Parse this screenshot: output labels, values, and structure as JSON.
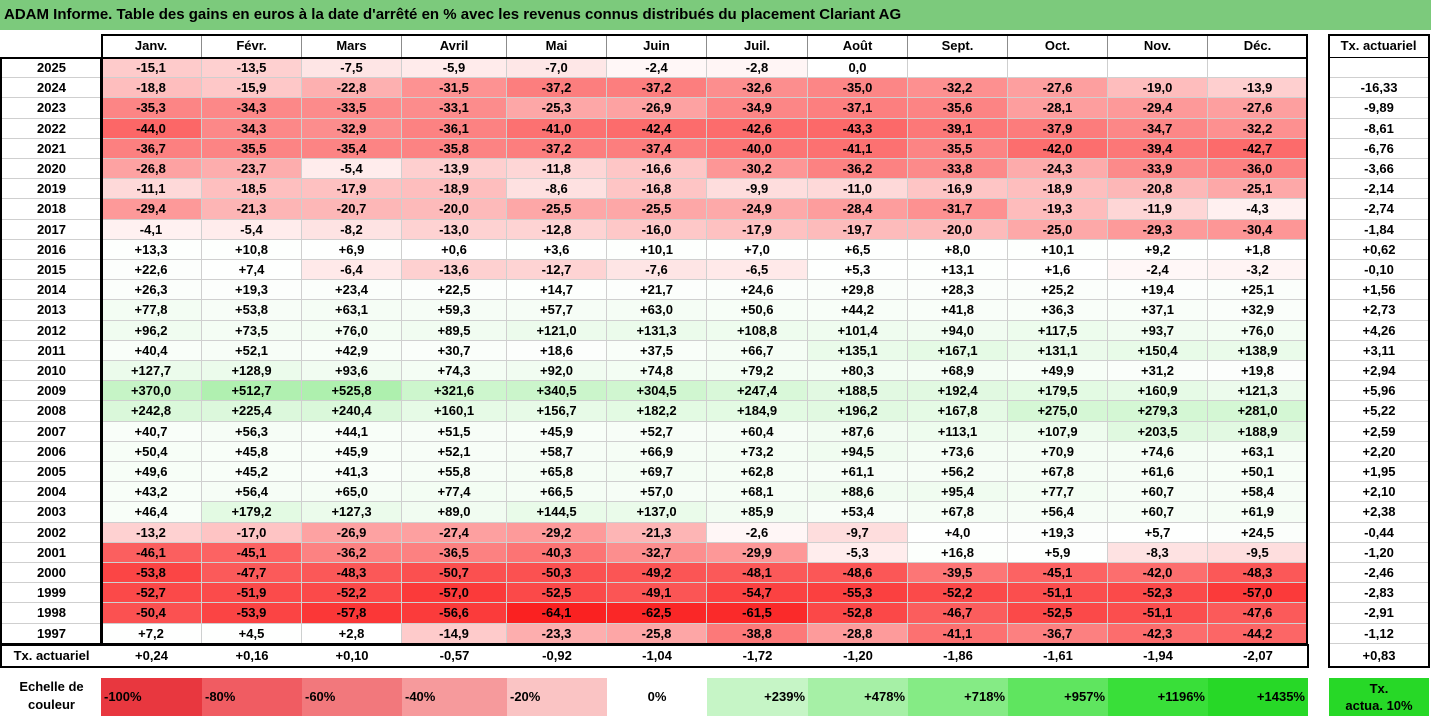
{
  "title": "ADAM Informe. Table des gains en euros à la date d'arrêté en % avec les revenus connus distribués du placement Clariant AG",
  "months": [
    "Janv.",
    "Févr.",
    "Mars",
    "Avril",
    "Mai",
    "Juin",
    "Juil.",
    "Août",
    "Sept.",
    "Oct.",
    "Nov.",
    "Déc."
  ],
  "rate_header": "Tx. actuariel",
  "colors": {
    "title_bar": "#7cca7c",
    "neg_100": "#e8373f",
    "neg_80": "#f05c62",
    "neg_60": "#f2787c",
    "neg_40": "#f69a9c",
    "neg_20": "#fac4c4",
    "zero": "#ffffff",
    "pos_239": "#c6f5c6",
    "pos_478": "#a6f0a6",
    "pos_718": "#85eb85",
    "pos_957": "#5fe55f",
    "pos_1196": "#39df39",
    "pos_1435": "#27d827"
  },
  "rows": [
    {
      "year": "2025",
      "values": [
        "-15,1",
        "-13,5",
        "-7,5",
        "-5,9",
        "-7,0",
        "-2,4",
        "-2,8",
        "0,0",
        "",
        "",
        "",
        ""
      ],
      "rate": ""
    },
    {
      "year": "2024",
      "values": [
        "-18,8",
        "-15,9",
        "-22,8",
        "-31,5",
        "-37,2",
        "-37,2",
        "-32,6",
        "-35,0",
        "-32,2",
        "-27,6",
        "-19,0",
        "-13,9"
      ],
      "rate": "-16,33"
    },
    {
      "year": "2023",
      "values": [
        "-35,3",
        "-34,3",
        "-33,5",
        "-33,1",
        "-25,3",
        "-26,9",
        "-34,9",
        "-37,1",
        "-35,6",
        "-28,1",
        "-29,4",
        "-27,6"
      ],
      "rate": "-9,89"
    },
    {
      "year": "2022",
      "values": [
        "-44,0",
        "-34,3",
        "-32,9",
        "-36,1",
        "-41,0",
        "-42,4",
        "-42,6",
        "-43,3",
        "-39,1",
        "-37,9",
        "-34,7",
        "-32,2"
      ],
      "rate": "-8,61"
    },
    {
      "year": "2021",
      "values": [
        "-36,7",
        "-35,5",
        "-35,4",
        "-35,8",
        "-37,2",
        "-37,4",
        "-40,0",
        "-41,1",
        "-35,5",
        "-42,0",
        "-39,4",
        "-42,7"
      ],
      "rate": "-6,76"
    },
    {
      "year": "2020",
      "values": [
        "-26,8",
        "-23,7",
        "-5,4",
        "-13,9",
        "-11,8",
        "-16,6",
        "-30,2",
        "-36,2",
        "-33,8",
        "-24,3",
        "-33,9",
        "-36,0"
      ],
      "rate": "-3,66"
    },
    {
      "year": "2019",
      "values": [
        "-11,1",
        "-18,5",
        "-17,9",
        "-18,9",
        "-8,6",
        "-16,8",
        "-9,9",
        "-11,0",
        "-16,9",
        "-18,9",
        "-20,8",
        "-25,1"
      ],
      "rate": "-2,14"
    },
    {
      "year": "2018",
      "values": [
        "-29,4",
        "-21,3",
        "-20,7",
        "-20,0",
        "-25,5",
        "-25,5",
        "-24,9",
        "-28,4",
        "-31,7",
        "-19,3",
        "-11,9",
        "-4,3"
      ],
      "rate": "-2,74"
    },
    {
      "year": "2017",
      "values": [
        "-4,1",
        "-5,4",
        "-8,2",
        "-13,0",
        "-12,8",
        "-16,0",
        "-17,9",
        "-19,7",
        "-20,0",
        "-25,0",
        "-29,3",
        "-30,4"
      ],
      "rate": "-1,84"
    },
    {
      "year": "2016",
      "values": [
        "+13,3",
        "+10,8",
        "+6,9",
        "+0,6",
        "+3,6",
        "+10,1",
        "+7,0",
        "+6,5",
        "+8,0",
        "+10,1",
        "+9,2",
        "+1,8"
      ],
      "rate": "+0,62"
    },
    {
      "year": "2015",
      "values": [
        "+22,6",
        "+7,4",
        "-6,4",
        "-13,6",
        "-12,7",
        "-7,6",
        "-6,5",
        "+5,3",
        "+13,1",
        "+1,6",
        "-2,4",
        "-3,2"
      ],
      "rate": "-0,10"
    },
    {
      "year": "2014",
      "values": [
        "+26,3",
        "+19,3",
        "+23,4",
        "+22,5",
        "+14,7",
        "+21,7",
        "+24,6",
        "+29,8",
        "+28,3",
        "+25,2",
        "+19,4",
        "+25,1"
      ],
      "rate": "+1,56"
    },
    {
      "year": "2013",
      "values": [
        "+77,8",
        "+53,8",
        "+63,1",
        "+59,3",
        "+57,7",
        "+63,0",
        "+50,6",
        "+44,2",
        "+41,8",
        "+36,3",
        "+37,1",
        "+32,9"
      ],
      "rate": "+2,73"
    },
    {
      "year": "2012",
      "values": [
        "+96,2",
        "+73,5",
        "+76,0",
        "+89,5",
        "+121,0",
        "+131,3",
        "+108,8",
        "+101,4",
        "+94,0",
        "+117,5",
        "+93,7",
        "+76,0"
      ],
      "rate": "+4,26"
    },
    {
      "year": "2011",
      "values": [
        "+40,4",
        "+52,1",
        "+42,9",
        "+30,7",
        "+18,6",
        "+37,5",
        "+66,7",
        "+135,1",
        "+167,1",
        "+131,1",
        "+150,4",
        "+138,9"
      ],
      "rate": "+3,11"
    },
    {
      "year": "2010",
      "values": [
        "+127,7",
        "+128,9",
        "+93,6",
        "+74,3",
        "+92,0",
        "+74,8",
        "+79,2",
        "+80,3",
        "+68,9",
        "+49,9",
        "+31,2",
        "+19,8"
      ],
      "rate": "+2,94"
    },
    {
      "year": "2009",
      "values": [
        "+370,0",
        "+512,7",
        "+525,8",
        "+321,6",
        "+340,5",
        "+304,5",
        "+247,4",
        "+188,5",
        "+192,4",
        "+179,5",
        "+160,9",
        "+121,3"
      ],
      "rate": "+5,96"
    },
    {
      "year": "2008",
      "values": [
        "+242,8",
        "+225,4",
        "+240,4",
        "+160,1",
        "+156,7",
        "+182,2",
        "+184,9",
        "+196,2",
        "+167,8",
        "+275,0",
        "+279,3",
        "+281,0"
      ],
      "rate": "+5,22"
    },
    {
      "year": "2007",
      "values": [
        "+40,7",
        "+56,3",
        "+44,1",
        "+51,5",
        "+45,9",
        "+52,7",
        "+60,4",
        "+87,6",
        "+113,1",
        "+107,9",
        "+203,5",
        "+188,9"
      ],
      "rate": "+2,59"
    },
    {
      "year": "2006",
      "values": [
        "+50,4",
        "+45,8",
        "+45,9",
        "+52,1",
        "+58,7",
        "+66,9",
        "+73,2",
        "+94,5",
        "+73,6",
        "+70,9",
        "+74,6",
        "+63,1"
      ],
      "rate": "+2,20"
    },
    {
      "year": "2005",
      "values": [
        "+49,6",
        "+45,2",
        "+41,3",
        "+55,8",
        "+65,8",
        "+69,7",
        "+62,8",
        "+61,1",
        "+56,2",
        "+67,8",
        "+61,6",
        "+50,1"
      ],
      "rate": "+1,95"
    },
    {
      "year": "2004",
      "values": [
        "+43,2",
        "+56,4",
        "+65,0",
        "+77,4",
        "+66,5",
        "+57,0",
        "+68,1",
        "+88,6",
        "+95,4",
        "+77,7",
        "+60,7",
        "+58,4"
      ],
      "rate": "+2,10"
    },
    {
      "year": "2003",
      "values": [
        "+46,4",
        "+179,2",
        "+127,3",
        "+89,0",
        "+144,5",
        "+137,0",
        "+85,9",
        "+53,4",
        "+67,8",
        "+56,4",
        "+60,7",
        "+61,9"
      ],
      "rate": "+2,38"
    },
    {
      "year": "2002",
      "values": [
        "-13,2",
        "-17,0",
        "-26,9",
        "-27,4",
        "-29,2",
        "-21,3",
        "-2,6",
        "-9,7",
        "+4,0",
        "+19,3",
        "+5,7",
        "+24,5"
      ],
      "rate": "-0,44"
    },
    {
      "year": "2001",
      "values": [
        "-46,1",
        "-45,1",
        "-36,2",
        "-36,5",
        "-40,3",
        "-32,7",
        "-29,9",
        "-5,3",
        "+16,8",
        "+5,9",
        "-8,3",
        "-9,5"
      ],
      "rate": "-1,20"
    },
    {
      "year": "2000",
      "values": [
        "-53,8",
        "-47,7",
        "-48,3",
        "-50,7",
        "-50,3",
        "-49,2",
        "-48,1",
        "-48,6",
        "-39,5",
        "-45,1",
        "-42,0",
        "-48,3"
      ],
      "rate": "-2,46"
    },
    {
      "year": "1999",
      "values": [
        "-52,7",
        "-51,9",
        "-52,2",
        "-57,0",
        "-52,5",
        "-49,1",
        "-54,7",
        "-55,3",
        "-52,2",
        "-51,1",
        "-52,3",
        "-57,0"
      ],
      "rate": "-2,83"
    },
    {
      "year": "1998",
      "values": [
        "-50,4",
        "-53,9",
        "-57,8",
        "-56,6",
        "-64,1",
        "-62,5",
        "-61,5",
        "-52,8",
        "-46,7",
        "-52,5",
        "-51,1",
        "-47,6"
      ],
      "rate": "-2,91"
    },
    {
      "year": "1997",
      "values": [
        "+7,2",
        "+4,5",
        "+2,8",
        "-14,9",
        "-23,3",
        "-25,8",
        "-38,8",
        "-28,8",
        "-41,1",
        "-36,7",
        "-42,3",
        "-44,2"
      ],
      "rate": "-1,12"
    }
  ],
  "totals": {
    "label": "Tx. actuariel",
    "values": [
      "+0,24",
      "+0,16",
      "+0,10",
      "-0,57",
      "-0,92",
      "-1,04",
      "-1,72",
      "-1,20",
      "-1,86",
      "-1,61",
      "-1,94",
      "-2,07"
    ],
    "rate": "+0,83"
  },
  "legend": {
    "label_line1": "Echelle de",
    "label_line2": "couleur",
    "items": [
      {
        "label": "-100%",
        "color": "#e8373f",
        "align": "left"
      },
      {
        "label": "-80%",
        "color": "#f05c62",
        "align": "left"
      },
      {
        "label": "-60%",
        "color": "#f2787c",
        "align": "left"
      },
      {
        "label": "-40%",
        "color": "#f69a9c",
        "align": "left"
      },
      {
        "label": "-20%",
        "color": "#fac4c4",
        "align": "left"
      },
      {
        "label": "0%",
        "color": "#ffffff",
        "align": "center"
      },
      {
        "label": "+239%",
        "color": "#c6f5c6",
        "align": "right"
      },
      {
        "label": "+478%",
        "color": "#a6f0a6",
        "align": "right"
      },
      {
        "label": "+718%",
        "color": "#85eb85",
        "align": "right"
      },
      {
        "label": "+957%",
        "color": "#5fe55f",
        "align": "right"
      },
      {
        "label": "+1196%",
        "color": "#39df39",
        "align": "right"
      },
      {
        "label": "+1435%",
        "color": "#27d827",
        "align": "right"
      }
    ],
    "rate_line1": "Tx.",
    "rate_line2": "actua. 10%",
    "rate_color": "#27d827"
  }
}
